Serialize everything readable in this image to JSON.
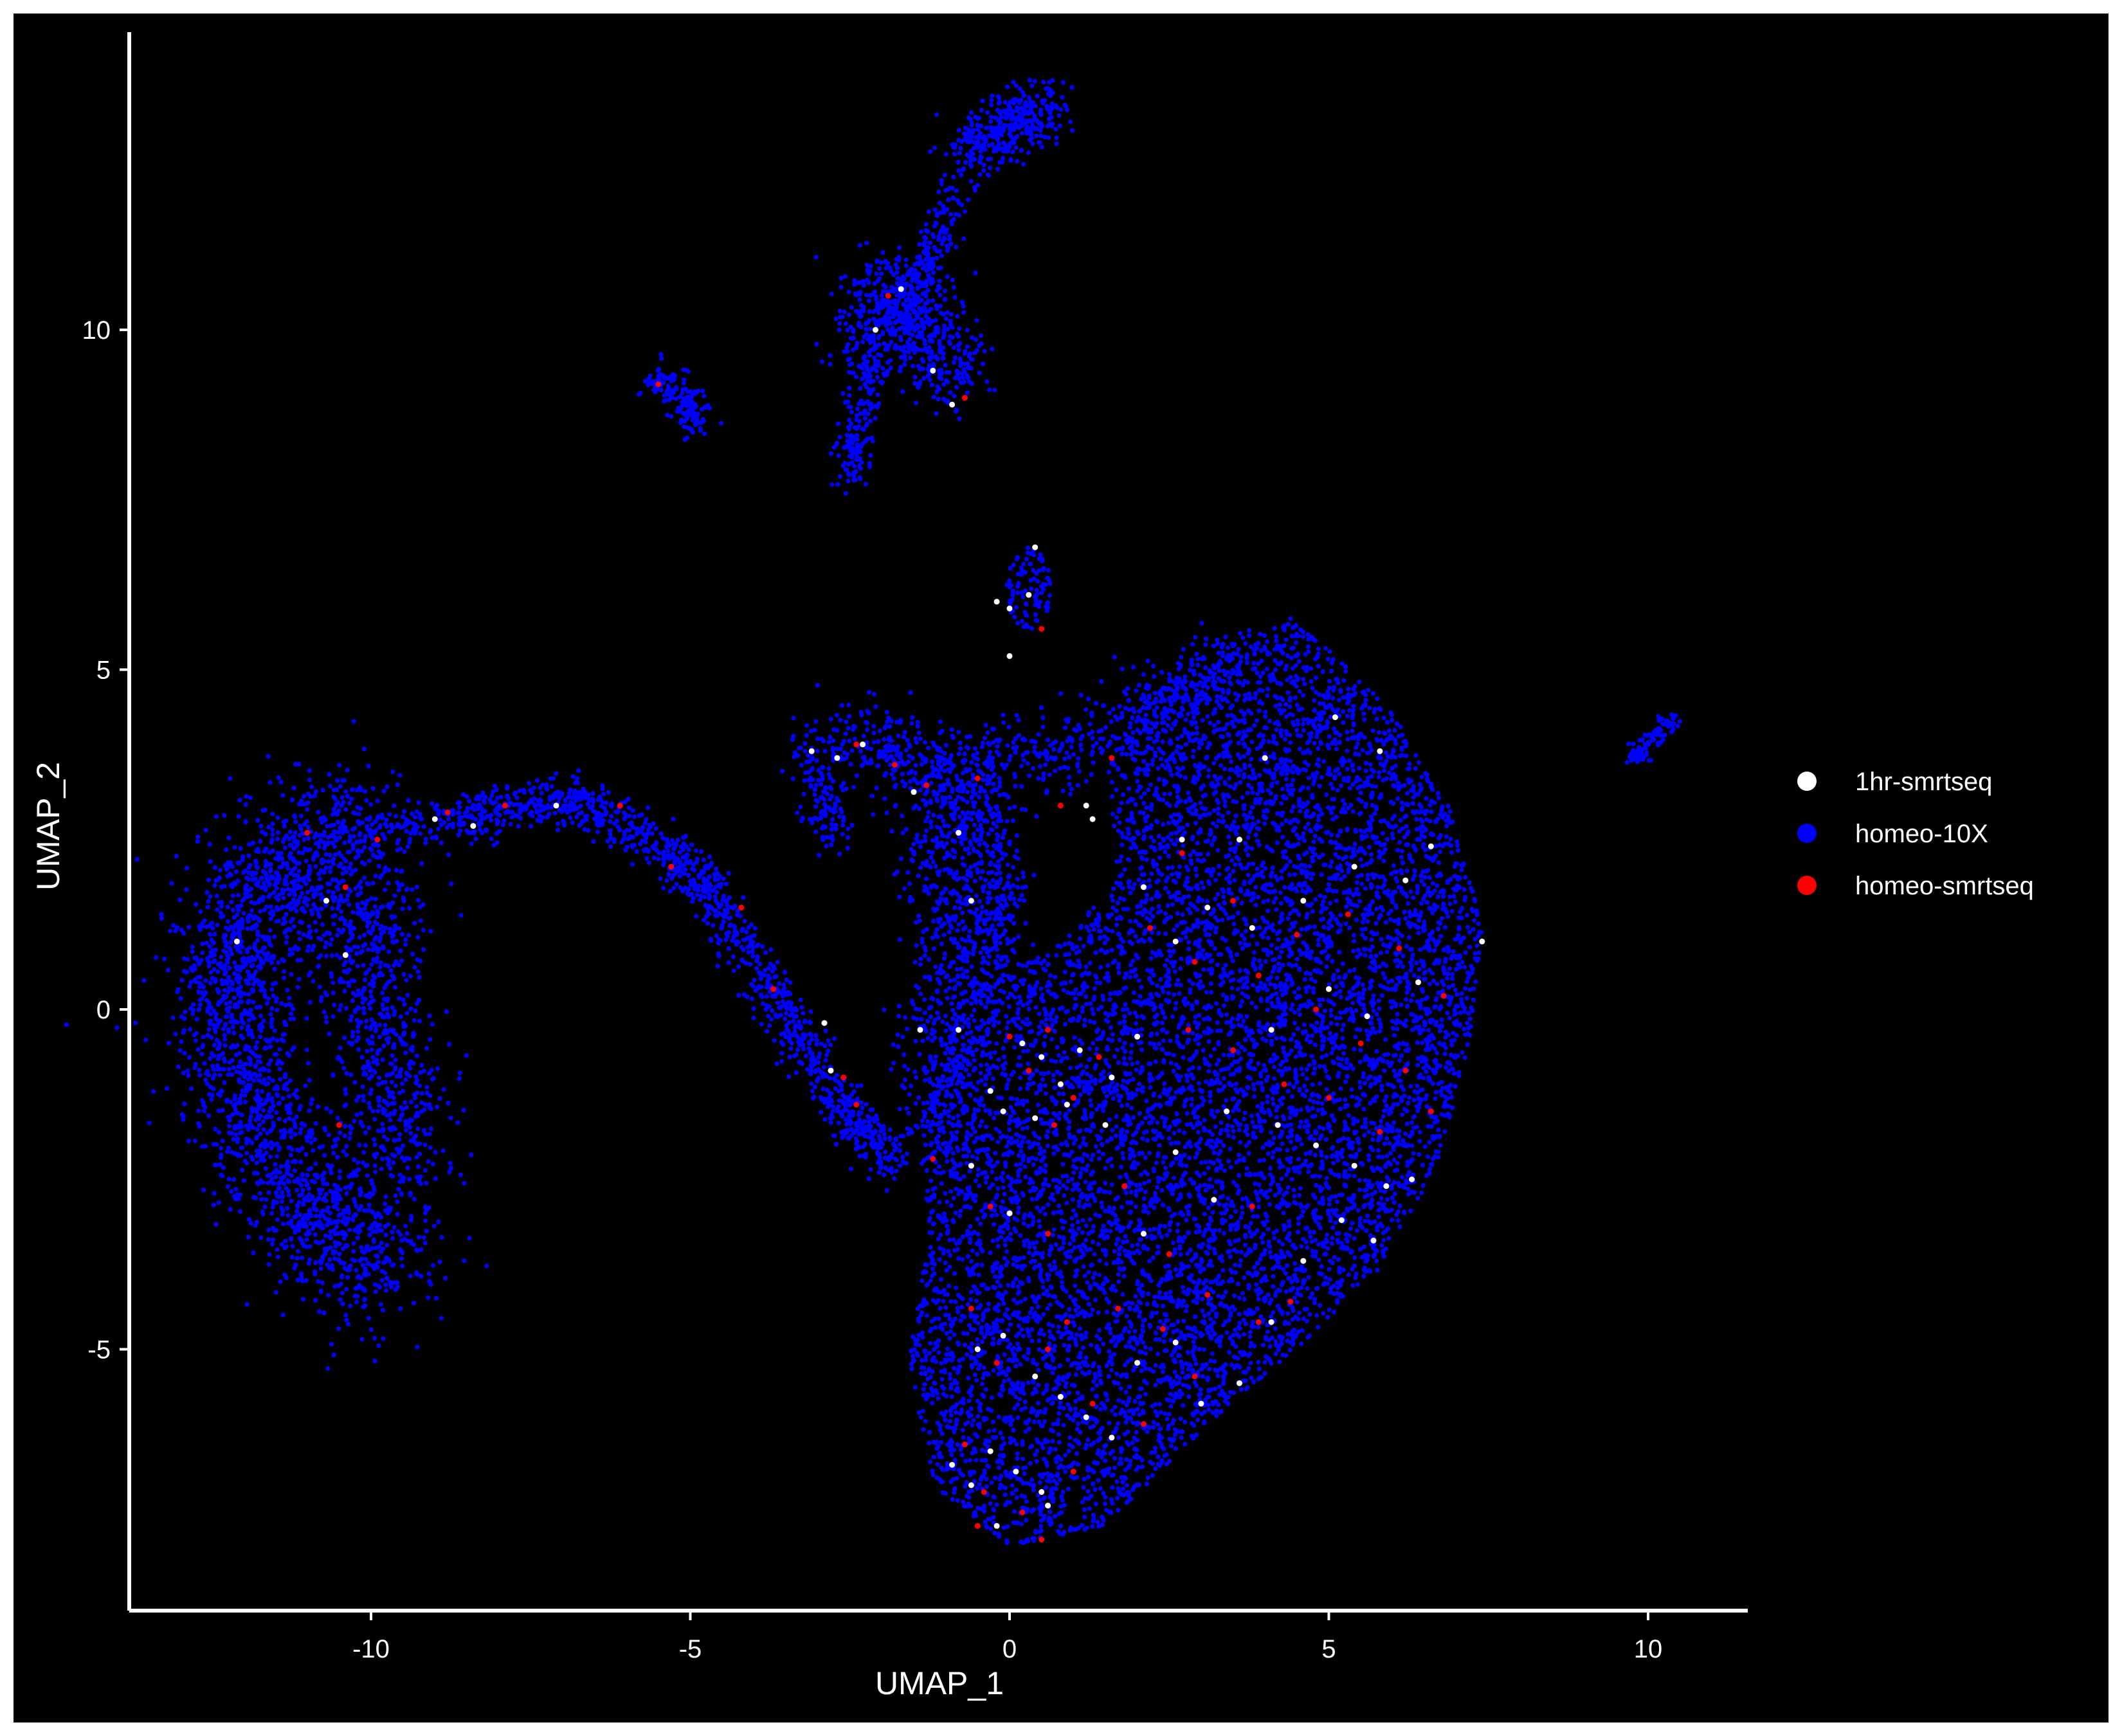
{
  "chart_data": {
    "type": "scatter",
    "title": "",
    "xlabel": "UMAP_1",
    "ylabel": "UMAP_2",
    "xlim": [
      -13.9,
      11.5
    ],
    "ylim": [
      -8.9,
      14.5
    ],
    "x_ticks": [
      -10,
      -5,
      0,
      5,
      10
    ],
    "x_tick_labels": [
      "-10",
      "-5",
      "0",
      "5",
      "10"
    ],
    "y_ticks": [
      -5,
      0,
      5,
      10
    ],
    "y_tick_labels": [
      "-5",
      "0",
      "5",
      "10"
    ],
    "grid": false,
    "background": "#000000",
    "axis_color": "#ffffff",
    "legend_position": "right",
    "series": [
      {
        "name": "1hr-smrtseq",
        "color": "#ffffff",
        "points": [
          [
            -12.1,
            1.0
          ],
          [
            -10.7,
            1.6
          ],
          [
            -10.4,
            0.8
          ],
          [
            -9.0,
            2.8
          ],
          [
            -8.4,
            2.7
          ],
          [
            -7.1,
            3.0
          ],
          [
            -2.1,
            10.0
          ],
          [
            -1.7,
            10.6
          ],
          [
            -1.2,
            9.4
          ],
          [
            -0.9,
            8.9
          ],
          [
            -0.2,
            6.0
          ],
          [
            0.0,
            5.9
          ],
          [
            0.3,
            6.1
          ],
          [
            0.4,
            6.8
          ],
          [
            0.0,
            5.2
          ],
          [
            -3.1,
            3.8
          ],
          [
            -2.7,
            3.7
          ],
          [
            -2.3,
            3.9
          ],
          [
            -1.5,
            3.2
          ],
          [
            -0.8,
            2.6
          ],
          [
            -0.6,
            1.6
          ],
          [
            1.2,
            3.0
          ],
          [
            1.3,
            2.8
          ],
          [
            2.7,
            2.5
          ],
          [
            3.6,
            2.5
          ],
          [
            4.0,
            3.7
          ],
          [
            5.1,
            4.3
          ],
          [
            5.8,
            3.8
          ],
          [
            2.1,
            1.8
          ],
          [
            2.6,
            1.0
          ],
          [
            3.1,
            1.5
          ],
          [
            3.8,
            1.2
          ],
          [
            4.6,
            1.6
          ],
          [
            5.4,
            2.1
          ],
          [
            6.2,
            1.9
          ],
          [
            6.6,
            2.4
          ],
          [
            7.4,
            1.0
          ],
          [
            6.4,
            0.4
          ],
          [
            5.6,
            -0.1
          ],
          [
            5.0,
            0.3
          ],
          [
            4.1,
            -0.3
          ],
          [
            0.2,
            -0.5
          ],
          [
            0.5,
            -0.7
          ],
          [
            0.8,
            -1.1
          ],
          [
            1.1,
            -0.6
          ],
          [
            1.6,
            -1.0
          ],
          [
            2.0,
            -0.4
          ],
          [
            -0.3,
            -1.2
          ],
          [
            -0.1,
            -1.5
          ],
          [
            0.4,
            -1.6
          ],
          [
            0.9,
            -1.4
          ],
          [
            1.5,
            -1.7
          ],
          [
            -0.8,
            -0.3
          ],
          [
            2.6,
            -2.1
          ],
          [
            3.4,
            -1.5
          ],
          [
            4.2,
            -1.7
          ],
          [
            4.8,
            -2.0
          ],
          [
            5.4,
            -2.3
          ],
          [
            5.9,
            -2.6
          ],
          [
            6.3,
            -2.5
          ],
          [
            5.2,
            -3.1
          ],
          [
            4.6,
            -3.7
          ],
          [
            5.7,
            -3.4
          ],
          [
            3.2,
            -2.8
          ],
          [
            2.1,
            -3.3
          ],
          [
            0.0,
            -3.0
          ],
          [
            -0.6,
            -2.3
          ],
          [
            -1.4,
            -0.3
          ],
          [
            -2.9,
            -0.2
          ],
          [
            -2.8,
            -0.9
          ],
          [
            -0.5,
            -5.0
          ],
          [
            -0.1,
            -4.8
          ],
          [
            0.4,
            -5.4
          ],
          [
            0.8,
            -5.7
          ],
          [
            1.2,
            -6.0
          ],
          [
            2.0,
            -5.2
          ],
          [
            2.6,
            -4.9
          ],
          [
            3.0,
            -5.8
          ],
          [
            3.6,
            -5.5
          ],
          [
            4.1,
            -4.6
          ],
          [
            -0.9,
            -6.7
          ],
          [
            -0.6,
            -7.0
          ],
          [
            -0.3,
            -6.5
          ],
          [
            0.1,
            -6.8
          ],
          [
            0.5,
            -7.1
          ],
          [
            -0.2,
            -7.6
          ],
          [
            0.6,
            -7.3
          ],
          [
            1.6,
            -6.3
          ]
        ]
      },
      {
        "name": "homeo-10X",
        "color": "#0000ff",
        "points": []
      },
      {
        "name": "homeo-smrtseq",
        "color": "#ff0000",
        "points": [
          [
            -11.0,
            2.6
          ],
          [
            -10.4,
            1.8
          ],
          [
            -9.9,
            2.5
          ],
          [
            -8.8,
            2.9
          ],
          [
            -7.9,
            3.0
          ],
          [
            -6.1,
            3.0
          ],
          [
            -5.3,
            2.1
          ],
          [
            -4.2,
            1.5
          ],
          [
            -3.7,
            0.3
          ],
          [
            -2.6,
            -1.0
          ],
          [
            -2.4,
            -1.4
          ],
          [
            -10.5,
            -1.7
          ],
          [
            -5.5,
            9.2
          ],
          [
            -1.9,
            10.5
          ],
          [
            -0.7,
            9.0
          ],
          [
            0.5,
            5.6
          ],
          [
            -2.4,
            3.9
          ],
          [
            -1.8,
            3.6
          ],
          [
            -1.3,
            3.3
          ],
          [
            -0.5,
            3.4
          ],
          [
            0.8,
            3.0
          ],
          [
            1.6,
            3.7
          ],
          [
            2.7,
            2.3
          ],
          [
            3.5,
            1.6
          ],
          [
            4.5,
            1.1
          ],
          [
            5.3,
            1.4
          ],
          [
            6.1,
            0.9
          ],
          [
            6.8,
            0.2
          ],
          [
            2.2,
            1.2
          ],
          [
            2.9,
            0.7
          ],
          [
            3.9,
            0.5
          ],
          [
            4.8,
            0.0
          ],
          [
            5.5,
            -0.5
          ],
          [
            6.2,
            -0.9
          ],
          [
            6.6,
            -1.5
          ],
          [
            5.8,
            -1.8
          ],
          [
            5.0,
            -1.3
          ],
          [
            4.3,
            -1.1
          ],
          [
            3.5,
            -0.6
          ],
          [
            2.8,
            -0.3
          ],
          [
            0.0,
            -0.4
          ],
          [
            0.3,
            -0.9
          ],
          [
            0.6,
            -0.3
          ],
          [
            1.0,
            -1.3
          ],
          [
            1.4,
            -0.7
          ],
          [
            0.7,
            -1.7
          ],
          [
            -1.2,
            -2.2
          ],
          [
            -0.3,
            -2.9
          ],
          [
            0.6,
            -3.3
          ],
          [
            1.8,
            -2.6
          ],
          [
            2.5,
            -3.6
          ],
          [
            3.8,
            -2.9
          ],
          [
            4.4,
            -4.3
          ],
          [
            3.9,
            -4.6
          ],
          [
            3.1,
            -4.2
          ],
          [
            2.4,
            -4.7
          ],
          [
            1.7,
            -4.4
          ],
          [
            0.9,
            -4.6
          ],
          [
            -0.6,
            -4.4
          ],
          [
            -0.2,
            -5.2
          ],
          [
            0.6,
            -5.0
          ],
          [
            1.3,
            -5.8
          ],
          [
            2.1,
            -6.1
          ],
          [
            2.9,
            -5.4
          ],
          [
            -0.7,
            -6.4
          ],
          [
            -0.4,
            -7.1
          ],
          [
            0.2,
            -7.4
          ],
          [
            0.5,
            -7.8
          ],
          [
            -0.5,
            -7.6
          ],
          [
            1.0,
            -6.8
          ]
        ]
      }
    ]
  }
}
